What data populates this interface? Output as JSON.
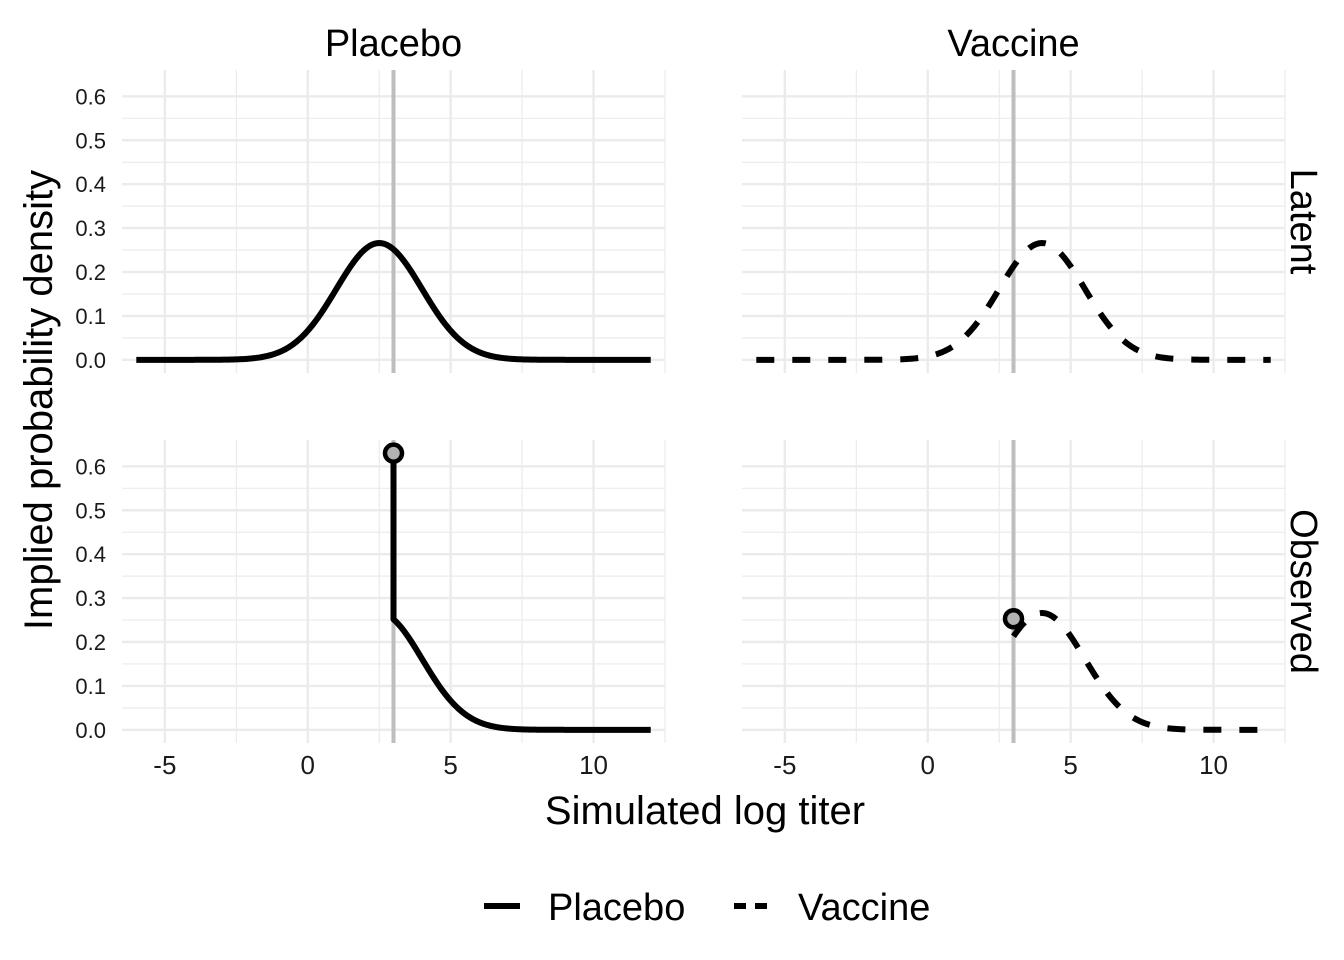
{
  "chart_data": {
    "type": "line",
    "xlabel": "Simulated log titer",
    "ylabel": "Implied probability density",
    "column_strips": [
      "Placebo",
      "Vaccine"
    ],
    "row_strips": [
      "Latent",
      "Observed"
    ],
    "xlim": [
      -6.5,
      12.5
    ],
    "ylim": [
      -0.03,
      0.66
    ],
    "x_ticks": [
      -5,
      0,
      5,
      10
    ],
    "x_tick_labels": [
      "-5",
      "0",
      "5",
      "10"
    ],
    "y_ticks": [
      0.0,
      0.1,
      0.2,
      0.3,
      0.4,
      0.5,
      0.6
    ],
    "y_tick_labels": [
      "0.0",
      "0.1",
      "0.2",
      "0.3",
      "0.4",
      "0.5",
      "0.6"
    ],
    "grid": true,
    "lloq": 3,
    "colors": {
      "line": "#000000",
      "ref_line": "#bebebe",
      "point_fill": "#b3b3b3",
      "grid": "#ebebeb"
    },
    "legend": {
      "position": "bottom",
      "entries": [
        {
          "label": "Placebo",
          "linetype": "solid"
        },
        {
          "label": "Vaccine",
          "linetype": "dashed"
        }
      ]
    },
    "series": [
      {
        "name": "Placebo",
        "row": "Latent",
        "col": "Placebo",
        "linetype": "solid",
        "mean": 2.5,
        "sd": 1.5,
        "x_range": [
          -6,
          12
        ],
        "truncate_below": null,
        "peak_density": 0.266
      },
      {
        "name": "Vaccine",
        "row": "Latent",
        "col": "Vaccine",
        "linetype": "dashed",
        "mean": 4.0,
        "sd": 1.5,
        "x_range": [
          -6,
          12
        ],
        "truncate_below": null,
        "peak_density": 0.266
      },
      {
        "name": "Placebo",
        "row": "Observed",
        "col": "Placebo",
        "linetype": "solid",
        "mean": 2.5,
        "sd": 1.5,
        "x_range": [
          -6,
          12
        ],
        "truncate_below": 3,
        "point_mass": {
          "x": 3,
          "y": 0.63
        }
      },
      {
        "name": "Vaccine",
        "row": "Observed",
        "col": "Vaccine",
        "linetype": "dashed",
        "mean": 4.0,
        "sd": 1.5,
        "x_range": [
          -6,
          12
        ],
        "truncate_below": 3,
        "point_mass": {
          "x": 3,
          "y": 0.253
        }
      }
    ]
  }
}
